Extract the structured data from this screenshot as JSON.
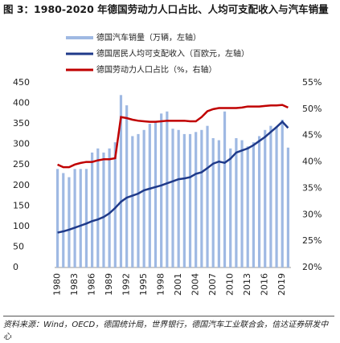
{
  "chart_data": {
    "type": "bar",
    "title": "图 3：1980-2020 年德国劳动力人口占比、人均可支配收入与汽车销量",
    "source": "资料来源：Wind，OECD，德国统计局，世界银行，德国汽车工业联合会，信达证券研发中心",
    "categories": [
      "1980",
      null,
      null,
      "1983",
      null,
      null,
      "1986",
      null,
      null,
      "1989",
      null,
      null,
      "1992",
      null,
      null,
      "1995",
      null,
      null,
      "1998",
      null,
      null,
      "2001",
      null,
      null,
      "2004",
      null,
      null,
      "2007",
      null,
      null,
      "2010",
      null,
      null,
      "2013",
      null,
      null,
      "2016",
      null,
      null,
      "2019",
      null
    ],
    "ylim": [
      0,
      450
    ],
    "yticks": [
      0,
      50,
      100,
      150,
      200,
      250,
      300,
      350,
      400,
      450
    ],
    "y2lim": [
      20,
      55
    ],
    "y2ticks": [
      {
        "value": 20,
        "label": "20%"
      },
      {
        "value": 25,
        "label": "25%"
      },
      {
        "value": 30,
        "label": "30%"
      },
      {
        "value": 35,
        "label": "35%"
      },
      {
        "value": 40,
        "label": "40%"
      },
      {
        "value": 45,
        "label": "45%"
      },
      {
        "value": 50,
        "label": "50%"
      },
      {
        "value": 55,
        "label": "55%"
      }
    ],
    "series": [
      {
        "name": "德国汽车销量（万辆，左轴）",
        "type": "bar",
        "axis": "y",
        "color": "#9fb9e3",
        "values": [
          240,
          230,
          220,
          240,
          240,
          240,
          280,
          290,
          280,
          290,
          305,
          420,
          395,
          320,
          325,
          335,
          350,
          355,
          375,
          380,
          338,
          335,
          325,
          325,
          330,
          335,
          345,
          315,
          310,
          380,
          290,
          315,
          310,
          295,
          305,
          320,
          335,
          345,
          343,
          360,
          292
        ]
      },
      {
        "name": "德国居民人均可支配收入（百欧元，左轴）",
        "type": "line",
        "axis": "y",
        "color": "#1f3a8a",
        "values": [
          85,
          88,
          92,
          97,
          102,
          107,
          113,
          117,
          123,
          132,
          145,
          160,
          170,
          175,
          180,
          188,
          192,
          196,
          200,
          205,
          210,
          215,
          217,
          220,
          228,
          232,
          242,
          253,
          258,
          255,
          265,
          280,
          285,
          290,
          298,
          308,
          318,
          330,
          342,
          355,
          340
        ]
      },
      {
        "name": "德国劳动力人口占比（%，右轴）",
        "type": "line",
        "axis": "y2",
        "color": "#c00000",
        "values": [
          39.5,
          39,
          39,
          39.5,
          39.8,
          40,
          40,
          40.3,
          40.5,
          40.5,
          40.7,
          48.5,
          48.3,
          48,
          47.8,
          47.7,
          47.6,
          47.6,
          47.7,
          47.8,
          47.8,
          47.8,
          47.8,
          47.7,
          47.7,
          48.5,
          49.6,
          50,
          50.2,
          50.2,
          50.2,
          50.2,
          50.3,
          50.5,
          50.5,
          50.5,
          50.6,
          50.7,
          50.7,
          50.8,
          50.3
        ]
      }
    ]
  }
}
